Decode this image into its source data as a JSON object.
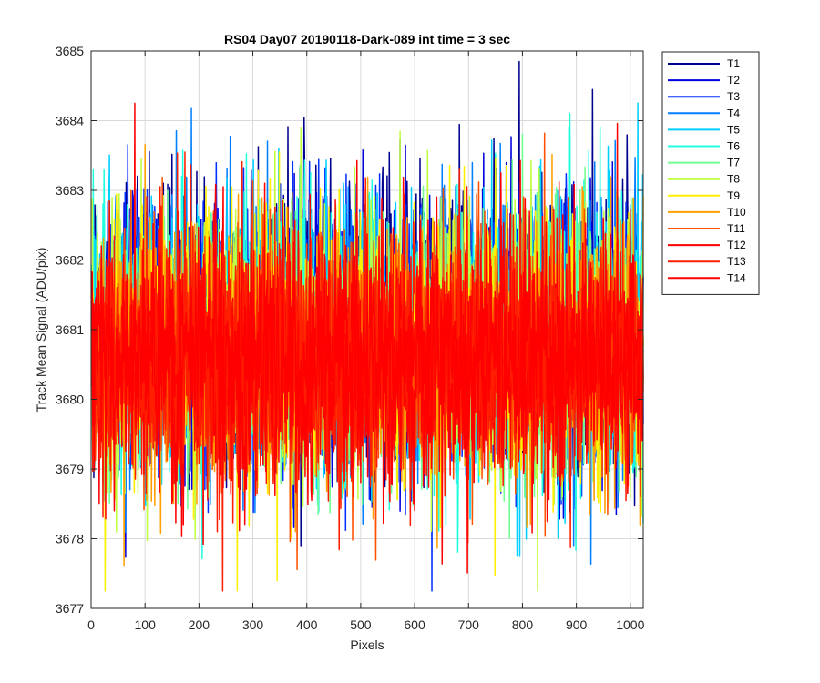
{
  "chart_data": {
    "type": "line",
    "title": "RS04 Day07 20190118-Dark-089 int time = 3 sec",
    "xlabel": "Pixels",
    "ylabel": "Track Mean Signal (ADU/pix)",
    "xlim": [
      0,
      1024
    ],
    "ylim": [
      3677,
      3685
    ],
    "xticks": [
      0,
      100,
      200,
      300,
      400,
      500,
      600,
      700,
      800,
      900,
      1000
    ],
    "yticks": [
      3677,
      3678,
      3679,
      3680,
      3681,
      3682,
      3683,
      3684,
      3685
    ],
    "grid": true,
    "legend_position": "outside-top-right",
    "n_points": 1024,
    "series": [
      {
        "name": "T1",
        "color": "#00008F",
        "mean": 3681.1,
        "spread": 1.05
      },
      {
        "name": "T2",
        "color": "#0000DF",
        "mean": 3681.0,
        "spread": 1.0
      },
      {
        "name": "T3",
        "color": "#0030FF",
        "mean": 3681.0,
        "spread": 0.98
      },
      {
        "name": "T4",
        "color": "#0080FF",
        "mean": 3680.9,
        "spread": 0.97
      },
      {
        "name": "T5",
        "color": "#00CFFF",
        "mean": 3680.9,
        "spread": 1.0
      },
      {
        "name": "T6",
        "color": "#20FFDF",
        "mean": 3680.8,
        "spread": 1.0
      },
      {
        "name": "T7",
        "color": "#70FF8F",
        "mean": 3680.8,
        "spread": 0.98
      },
      {
        "name": "T8",
        "color": "#BFFF40",
        "mean": 3680.8,
        "spread": 0.97
      },
      {
        "name": "T9",
        "color": "#FFEF00",
        "mean": 3680.7,
        "spread": 0.95
      },
      {
        "name": "T10",
        "color": "#FF9F00",
        "mean": 3680.7,
        "spread": 0.95
      },
      {
        "name": "T11",
        "color": "#FF5000",
        "mean": 3680.6,
        "spread": 0.93
      },
      {
        "name": "T12",
        "color": "#FF0000",
        "mean": 3680.6,
        "spread": 0.92
      },
      {
        "name": "T13",
        "color": "#FF1E00",
        "mean": 3680.6,
        "spread": 0.9
      },
      {
        "name": "T14",
        "color": "#FF0000",
        "mean": 3680.6,
        "spread": 0.8
      }
    ]
  }
}
